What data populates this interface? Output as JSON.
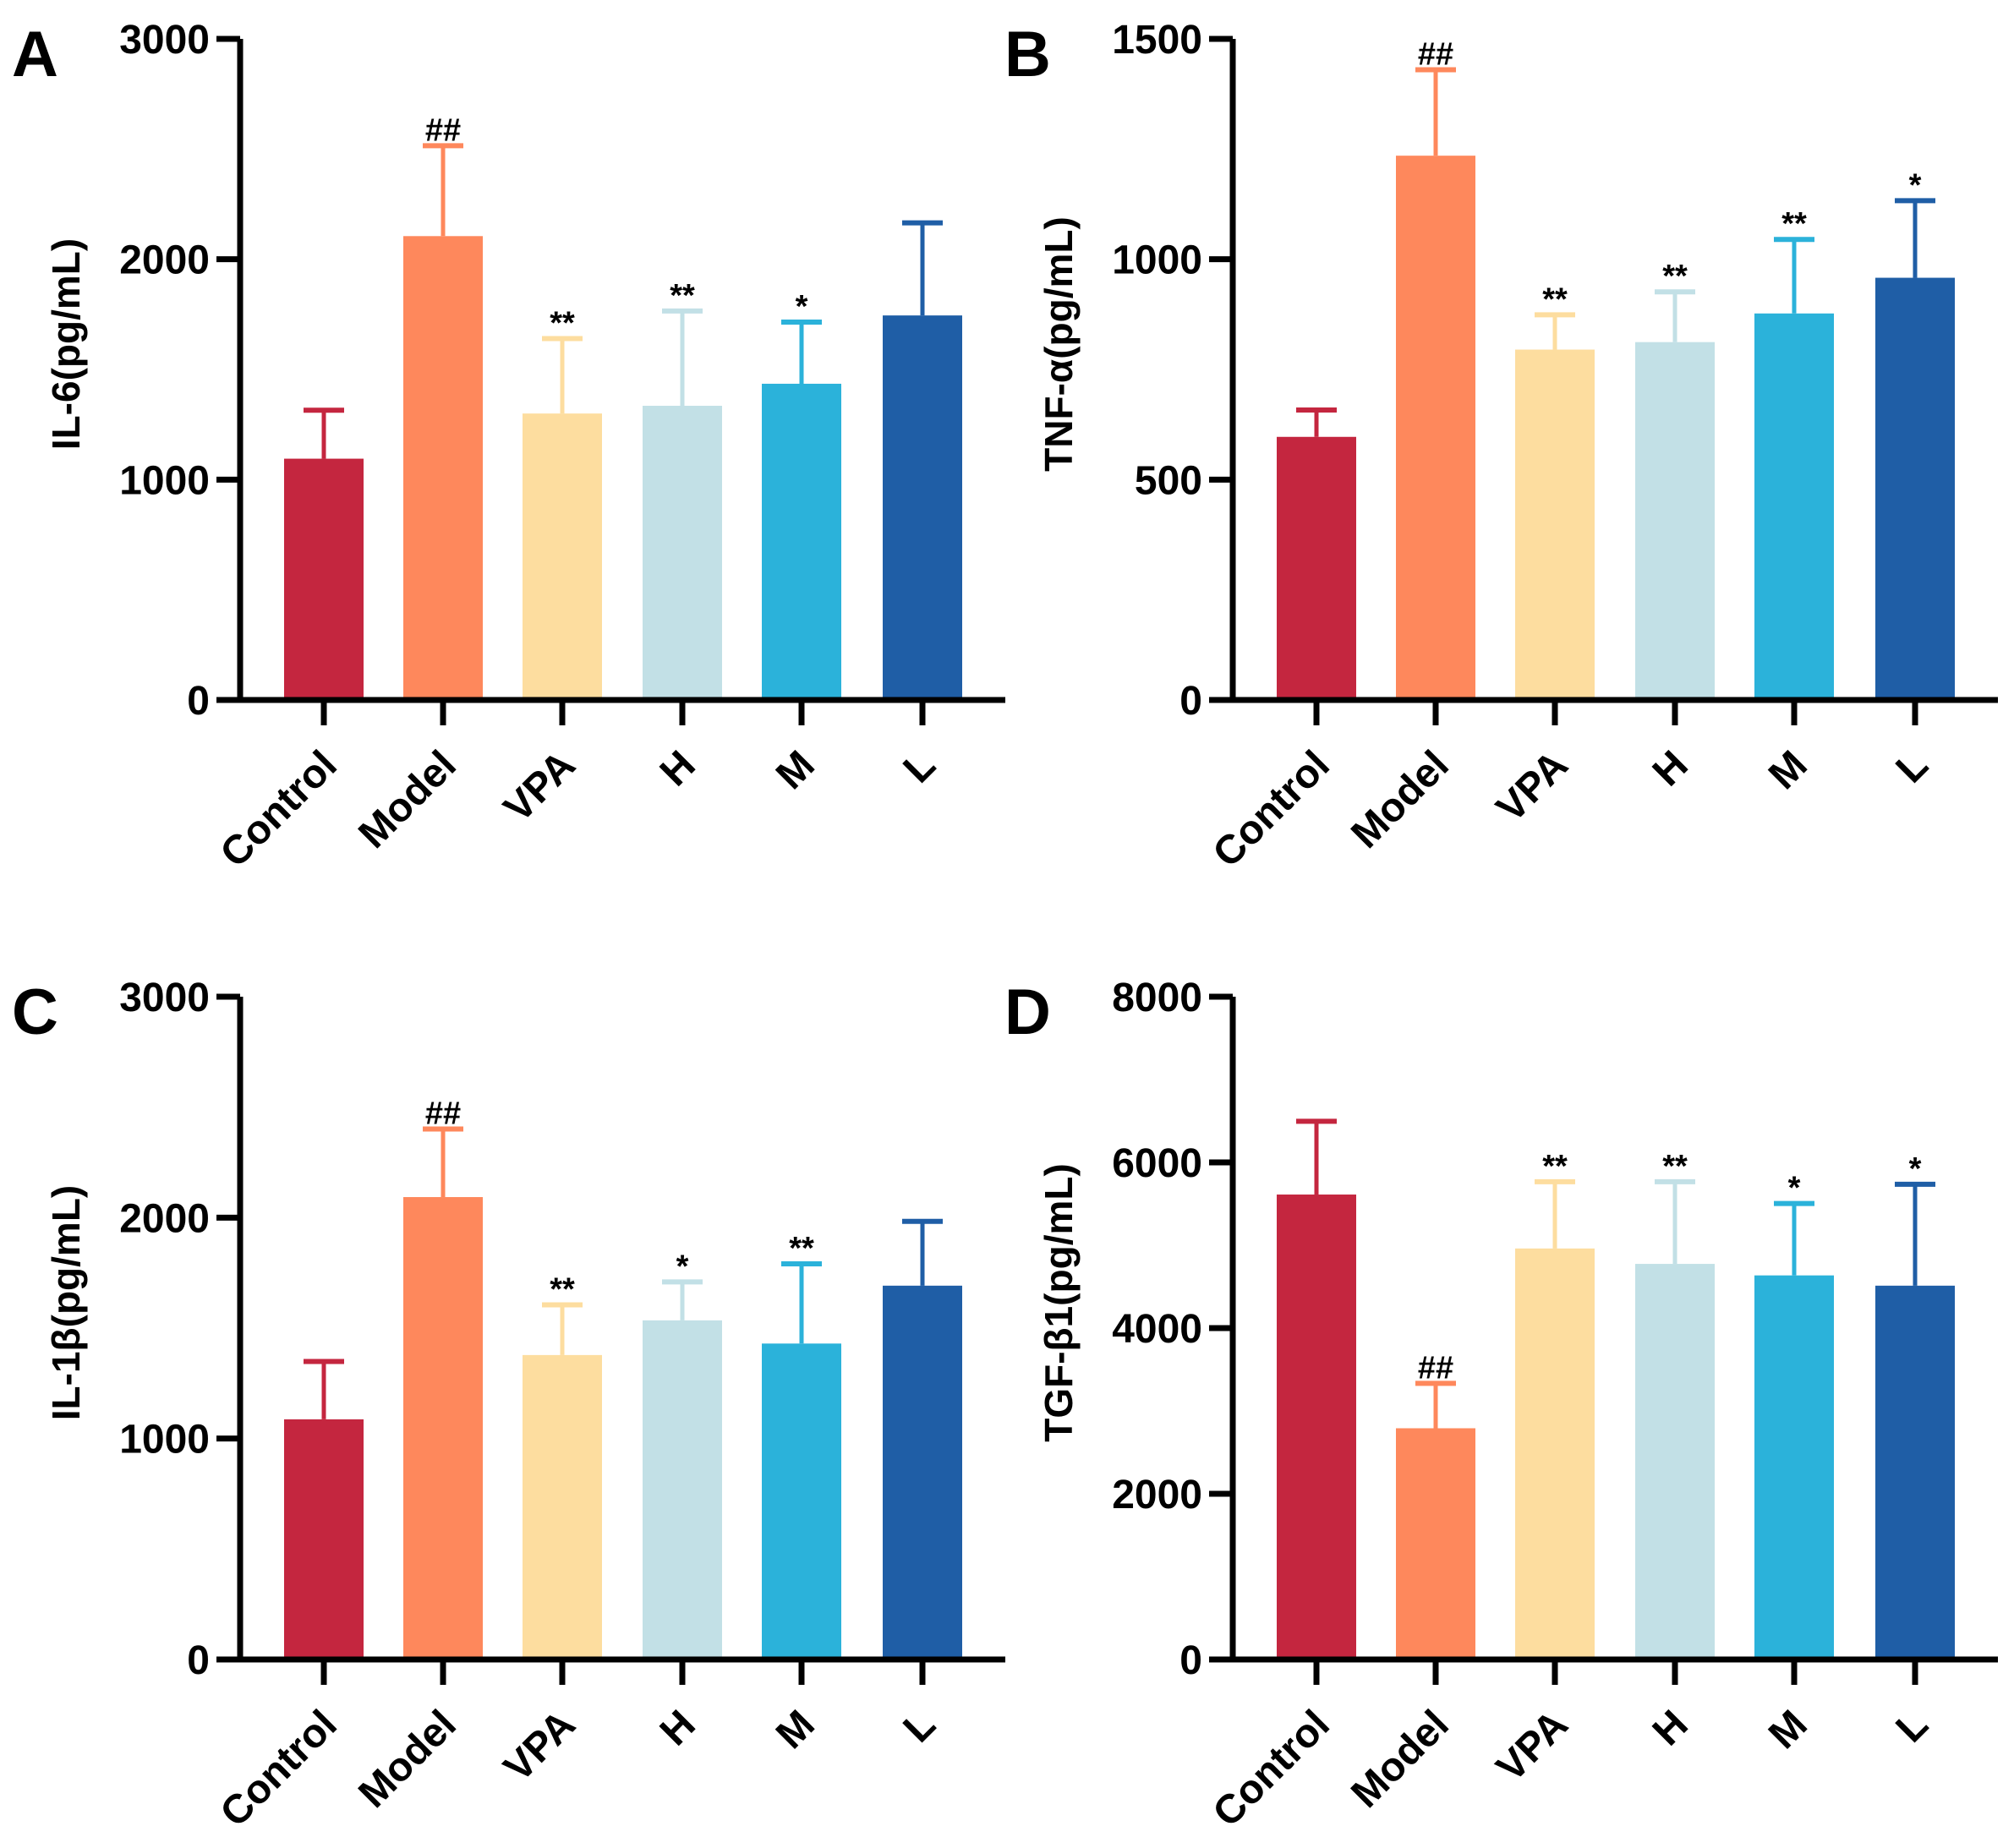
{
  "chart_data": [
    {
      "type": "bar",
      "panel_label": "A",
      "ylabel": "IL-6(pg/mL)",
      "ylim": [
        0,
        3000
      ],
      "yticks": [
        "0",
        "1000",
        "2000",
        "3000"
      ],
      "categories": [
        "Control",
        "Model",
        "VPA",
        "H",
        "M",
        "L"
      ],
      "values": [
        1095,
        2105,
        1300,
        1335,
        1435,
        1745
      ],
      "error_upper": [
        1315,
        2515,
        1640,
        1765,
        1715,
        2165
      ],
      "annotations": [
        "",
        "##",
        "**",
        "**",
        "*",
        ""
      ]
    },
    {
      "type": "bar",
      "panel_label": "B",
      "ylabel": "TNF-α(pg/mL)",
      "ylim": [
        0,
        1500
      ],
      "yticks": [
        "0",
        "500",
        "1000",
        "1500"
      ],
      "categories": [
        "Control",
        "Model",
        "VPA",
        "H",
        "M",
        "L"
      ],
      "values": [
        597,
        1235,
        795,
        812,
        877,
        958
      ],
      "error_upper": [
        658,
        1430,
        874,
        926,
        1045,
        1133
      ],
      "annotations": [
        "",
        "##",
        "**",
        "**",
        "**",
        "*"
      ]
    },
    {
      "type": "bar",
      "panel_label": "C",
      "ylabel": "IL-1β(pg/mL)",
      "ylim": [
        0,
        3000
      ],
      "yticks": [
        "0",
        "1000",
        "2000",
        "3000"
      ],
      "categories": [
        "Control",
        "Model",
        "VPA",
        "H",
        "M",
        "L"
      ],
      "values": [
        1087,
        2093,
        1378,
        1535,
        1430,
        1692
      ],
      "error_upper": [
        1349,
        2401,
        1605,
        1709,
        1791,
        1983
      ],
      "annotations": [
        "",
        "##",
        "**",
        "*",
        "**",
        ""
      ]
    },
    {
      "type": "bar",
      "panel_label": "D",
      "ylabel": "TGF-β1(pg/mL)",
      "ylim": [
        0,
        8000
      ],
      "yticks": [
        "0",
        "2000",
        "4000",
        "6000",
        "8000"
      ],
      "categories": [
        "Control",
        "Model",
        "VPA",
        "H",
        "M",
        "L"
      ],
      "values": [
        5612,
        2791,
        4961,
        4775,
        4636,
        4512
      ],
      "error_upper": [
        6496,
        3333,
        5767,
        5767,
        5504,
        5736
      ],
      "annotations": [
        "",
        "##",
        "**",
        "**",
        "*",
        "*"
      ]
    }
  ],
  "colors": [
    "#c4263f",
    "#fe885c",
    "#fddd9f",
    "#c2e0e6",
    "#2bb2da",
    "#1f5ea6"
  ]
}
